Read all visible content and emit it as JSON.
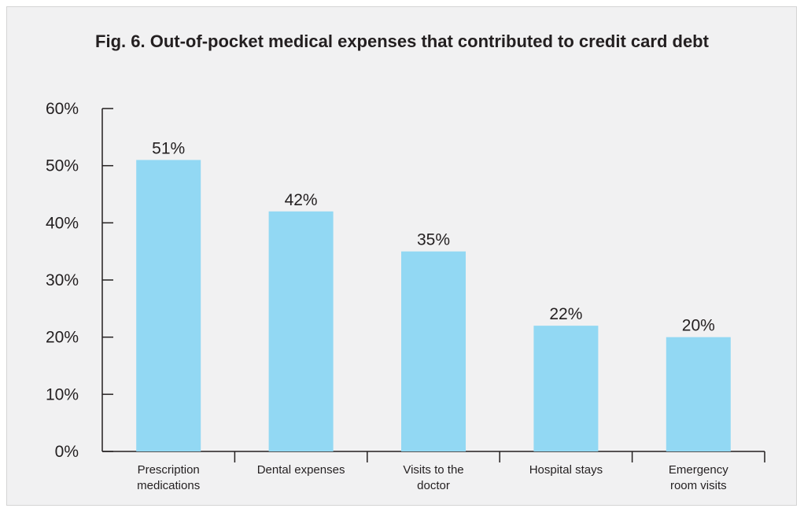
{
  "chart_data": {
    "type": "bar",
    "title": "Fig. 6. Out-of-pocket medical expenses that contributed to credit card debt",
    "categories": [
      "Prescription medications",
      "Dental expenses",
      "Visits to the doctor",
      "Hospital stays",
      "Emergency room visits"
    ],
    "values": [
      51,
      42,
      35,
      22,
      20
    ],
    "value_labels": [
      "51%",
      "42%",
      "35%",
      "22%",
      "20%"
    ],
    "color": "#92d8f3",
    "ylim": [
      0,
      60
    ],
    "yticks": [
      {
        "value": 0,
        "label": "0%"
      },
      {
        "value": 10,
        "label": "10%"
      },
      {
        "value": 20,
        "label": "20%"
      },
      {
        "value": 30,
        "label": "30%"
      },
      {
        "value": 40,
        "label": "40%"
      },
      {
        "value": 50,
        "label": "50%"
      },
      {
        "value": 60,
        "label": "60%"
      }
    ],
    "grid": false
  }
}
